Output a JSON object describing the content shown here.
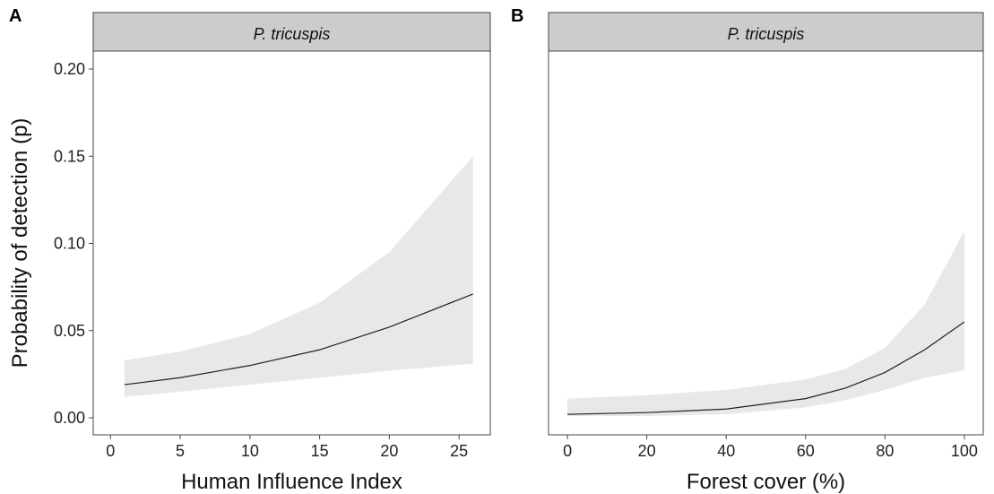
{
  "chart_data": [
    {
      "type": "line",
      "panel_tag": "A",
      "strip_title": "P. tricuspis",
      "xlabel": "Human Influence Index",
      "ylabel": "Probability of detection (p)",
      "xlim": [
        0,
        26
      ],
      "ylim": [
        0,
        0.2
      ],
      "x_ticks": [
        "0",
        "5",
        "10",
        "15",
        "20",
        "25"
      ],
      "y_ticks": [
        "0.00",
        "0.05",
        "0.10",
        "0.15",
        "0.20"
      ],
      "grid": false,
      "series": [
        {
          "x": [
            1,
            5,
            10,
            15,
            20,
            26
          ],
          "y": [
            0.019,
            0.023,
            0.03,
            0.039,
            0.052,
            0.071
          ],
          "lower": [
            0.012,
            0.015,
            0.019,
            0.023,
            0.027,
            0.031
          ],
          "upper": [
            0.033,
            0.038,
            0.048,
            0.066,
            0.095,
            0.15
          ]
        }
      ],
      "colors": {
        "line": "#222222",
        "band": "#e8e8e8",
        "strip": "#cccccc"
      }
    },
    {
      "type": "line",
      "panel_tag": "B",
      "strip_title": "P. tricuspis",
      "xlabel": "Forest cover (%)",
      "ylabel": "",
      "xlim": [
        0,
        100
      ],
      "ylim": [
        0,
        0.2
      ],
      "x_ticks": [
        "0",
        "20",
        "40",
        "60",
        "80",
        "100"
      ],
      "y_ticks": [],
      "grid": false,
      "series": [
        {
          "x": [
            0,
            20,
            40,
            60,
            70,
            80,
            90,
            100
          ],
          "y": [
            0.002,
            0.003,
            0.005,
            0.011,
            0.017,
            0.026,
            0.039,
            0.055
          ],
          "lower": [
            0.001,
            0.001,
            0.002,
            0.006,
            0.01,
            0.016,
            0.023,
            0.027
          ],
          "upper": [
            0.011,
            0.013,
            0.016,
            0.022,
            0.028,
            0.04,
            0.065,
            0.107
          ]
        }
      ],
      "colors": {
        "line": "#222222",
        "band": "#e8e8e8",
        "strip": "#cccccc"
      }
    }
  ]
}
